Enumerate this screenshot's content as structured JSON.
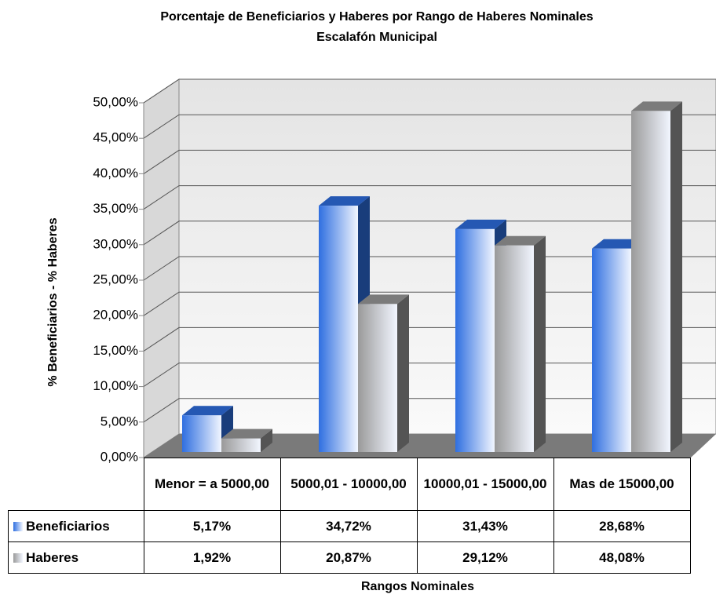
{
  "chart_data": {
    "type": "bar",
    "title": "Porcentaje de Beneficiarios y Haberes por Rango de Haberes Nominales",
    "subtitle": "Escalafón Municipal",
    "y_label": "% Beneficiarios - % Haberes",
    "x_label": "Rangos Nominales",
    "categories": [
      "Menor = a 5000,00",
      "5000,01 - 10000,00",
      "10000,01 - 15000,00",
      "Mas de 15000,00"
    ],
    "series": [
      {
        "name": "Beneficiarios",
        "color": "#2f6fe0",
        "values": [
          5.17,
          34.72,
          31.43,
          28.68
        ],
        "value_labels": [
          "5,17%",
          "34,72%",
          "31,43%",
          "28,68%"
        ]
      },
      {
        "name": "Haberes",
        "color": "#9a9a9a",
        "values": [
          1.92,
          20.87,
          29.12,
          48.08
        ],
        "value_labels": [
          "1,92%",
          "20,87%",
          "29,12%",
          "48,08%"
        ]
      }
    ],
    "ylim": [
      0,
      50
    ],
    "yticks": [
      {
        "value": 0,
        "label": "0,00%"
      },
      {
        "value": 5,
        "label": "5,00%"
      },
      {
        "value": 10,
        "label": "10,00%"
      },
      {
        "value": 15,
        "label": "15,00%"
      },
      {
        "value": 20,
        "label": "20,00%"
      },
      {
        "value": 25,
        "label": "25,00%"
      },
      {
        "value": 30,
        "label": "30,00%"
      },
      {
        "value": 35,
        "label": "35,00%"
      },
      {
        "value": 40,
        "label": "40,00%"
      },
      {
        "value": 45,
        "label": "45,00%"
      },
      {
        "value": 50,
        "label": "50,00%"
      }
    ],
    "grid": true
  }
}
